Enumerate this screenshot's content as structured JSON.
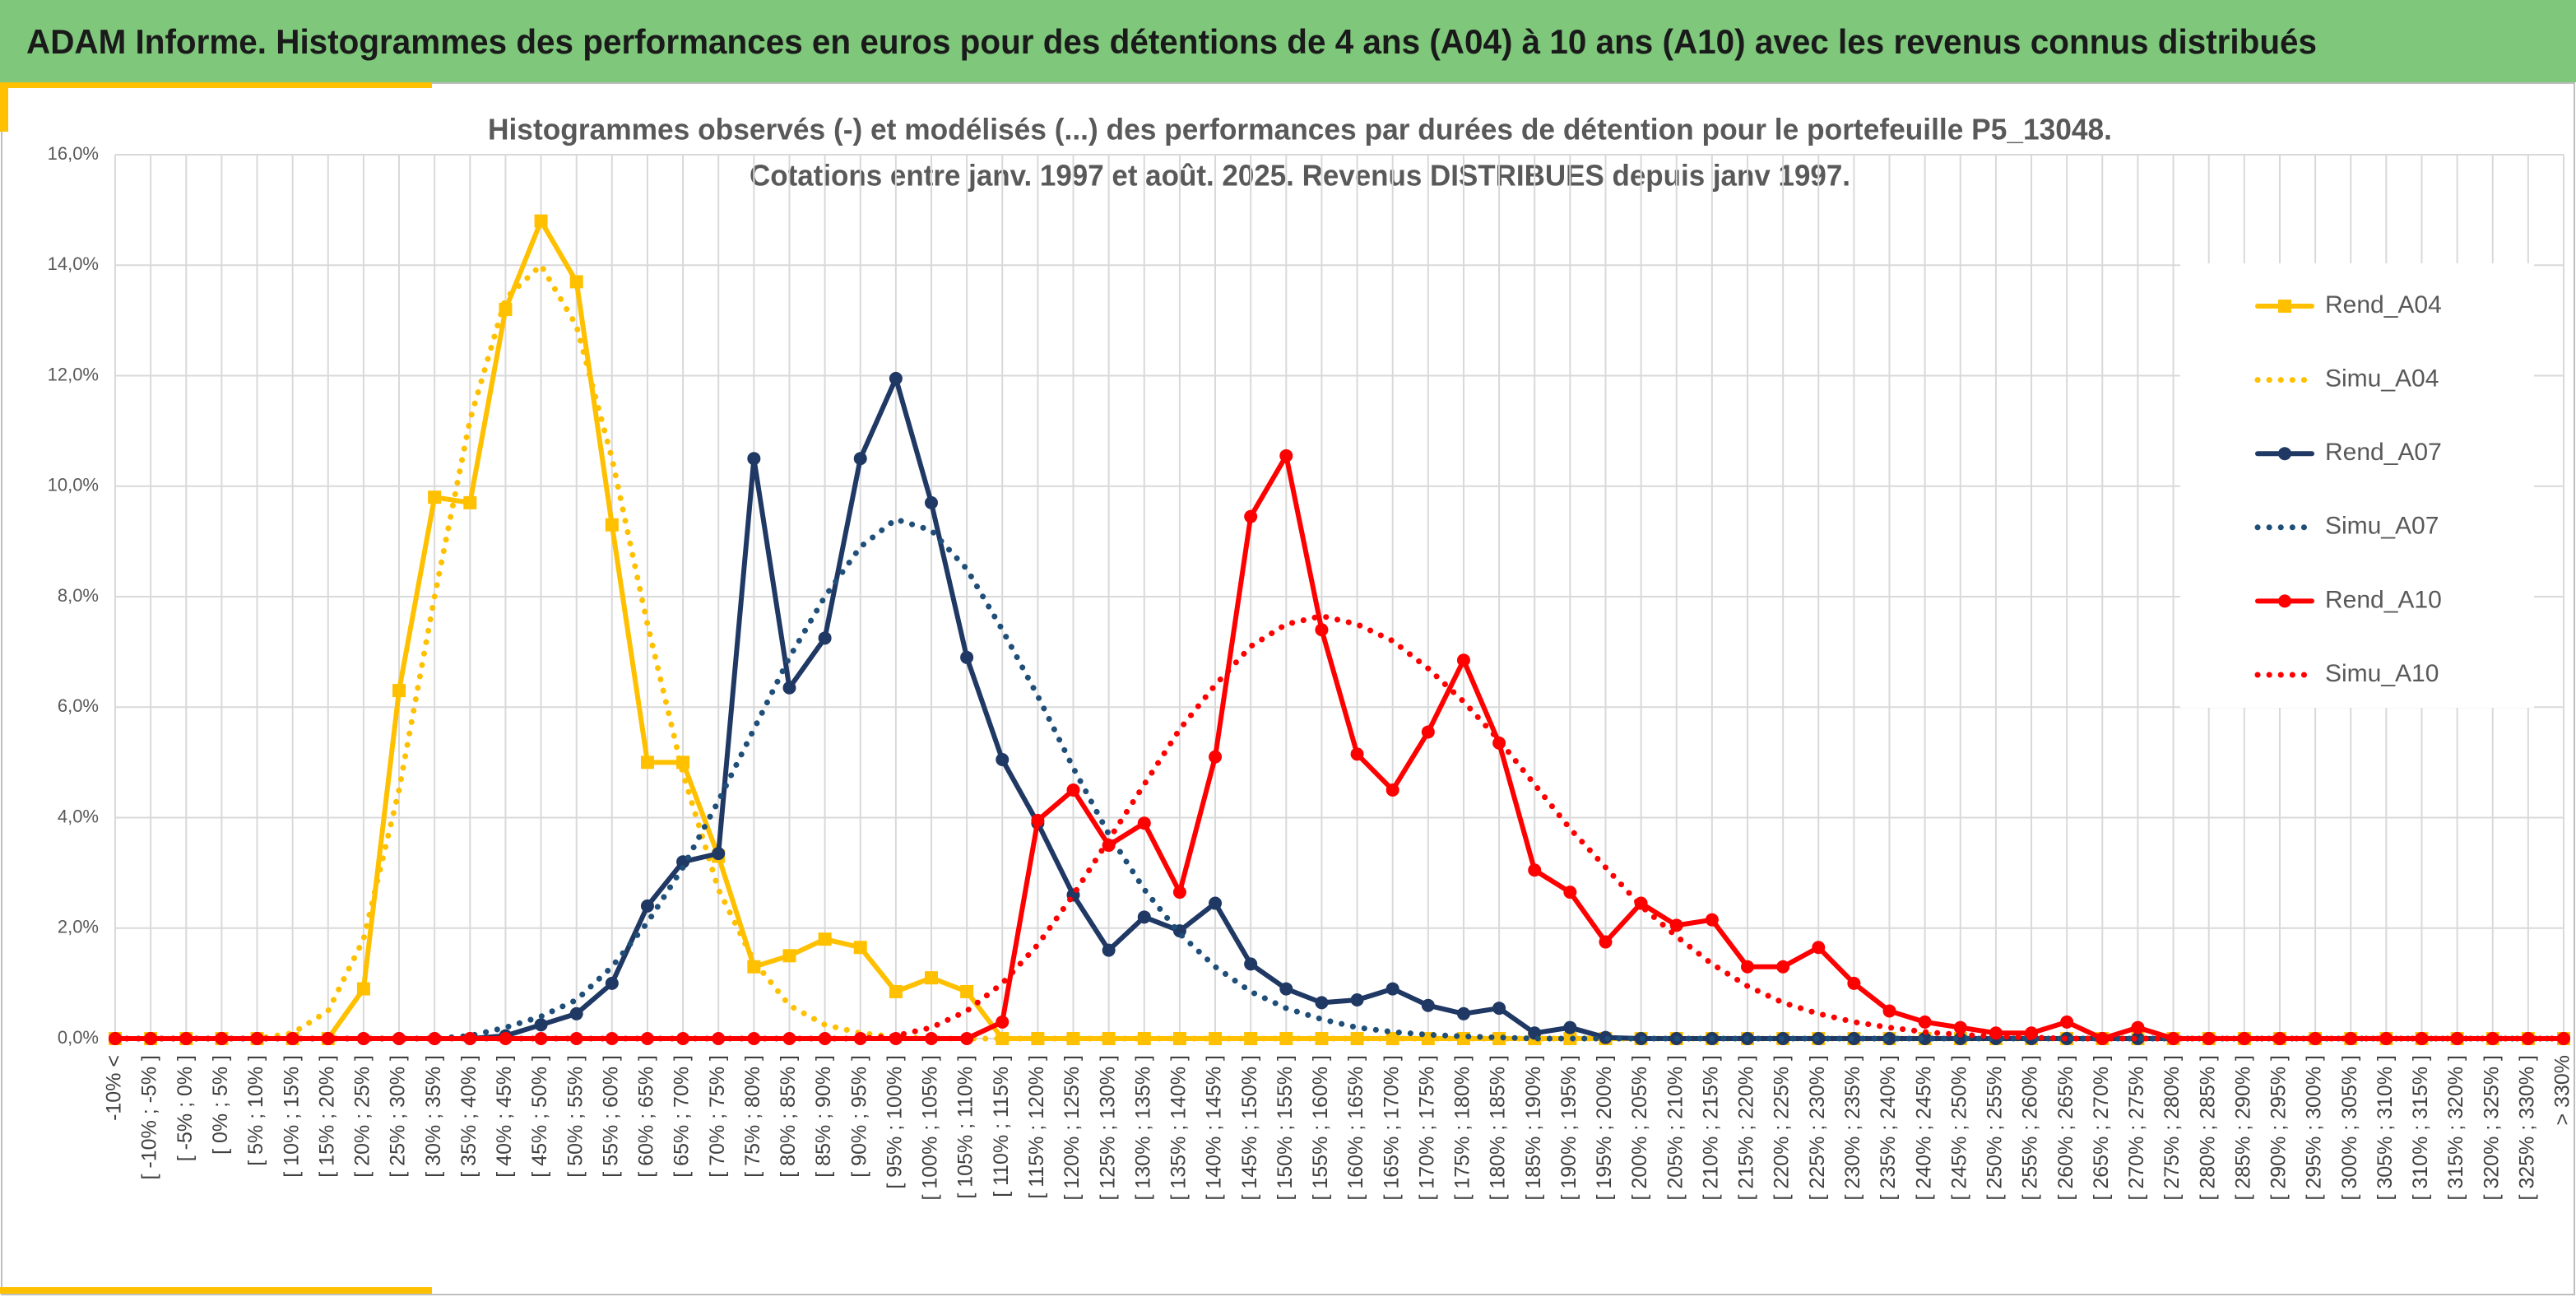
{
  "header": {
    "title": "ADAM Informe. Histogrammes des performances en euros pour des détentions de 4 ans (A04) à 10 ans (A10) avec les revenus connus distribués"
  },
  "chart_data": {
    "type": "line",
    "title": "Histogrammes observés (-) et modélisés (...) des performances par durées de détention pour le portefeuille P5_13048.",
    "subtitle": "Cotations entre janv. 1997 et août. 2025. Revenus DISTRIBUES depuis janv 1997.",
    "categories": [
      "-10% <",
      "[ -10% ; -5% ]",
      "[ -5% ; 0% ]",
      "[ 0% ; 5% ]",
      "[ 5% ; 10% ]",
      "[ 10% ; 15% ]",
      "[ 15% ; 20% ]",
      "[ 20% ; 25% ]",
      "[ 25% ; 30% ]",
      "[ 30% ; 35% ]",
      "[ 35% ; 40% ]",
      "[ 40% ; 45% ]",
      "[ 45% ; 50% ]",
      "[ 50% ; 55% ]",
      "[ 55% ; 60% ]",
      "[ 60% ; 65% ]",
      "[ 65% ; 70% ]",
      "[ 70% ; 75% ]",
      "[ 75% ; 80% ]",
      "[ 80% ; 85% ]",
      "[ 85% ; 90% ]",
      "[ 90% ; 95% ]",
      "[ 95% ; 100% ]",
      "[ 100% ; 105% ]",
      "[ 105% ; 110% ]",
      "[ 110% ; 115% ]",
      "[ 115% ; 120% ]",
      "[ 120% ; 125% ]",
      "[ 125% ; 130% ]",
      "[ 130% ; 135% ]",
      "[ 135% ; 140% ]",
      "[ 140% ; 145% ]",
      "[ 145% ; 150% ]",
      "[ 150% ; 155% ]",
      "[ 155% ; 160% ]",
      "[ 160% ; 165% ]",
      "[ 165% ; 170% ]",
      "[ 170% ; 175% ]",
      "[ 175% ; 180% ]",
      "[ 180% ; 185% ]",
      "[ 185% ; 190% ]",
      "[ 190% ; 195% ]",
      "[ 195% ; 200% ]",
      "[ 200% ; 205% ]",
      "[ 205% ; 210% ]",
      "[ 210% ; 215% ]",
      "[ 215% ; 220% ]",
      "[ 220% ; 225% ]",
      "[ 225% ; 230% ]",
      "[ 230% ; 235% ]",
      "[ 235% ; 240% ]",
      "[ 240% ; 245% ]",
      "[ 245% ; 250% ]",
      "[ 250% ; 255% ]",
      "[ 255% ; 260% ]",
      "[ 260% ; 265% ]",
      "[ 265% ; 270% ]",
      "[ 270% ; 275% ]",
      "[ 275% ; 280% ]",
      "[ 280% ; 285% ]",
      "[ 285% ; 290% ]",
      "[ 290% ; 295% ]",
      "[ 295% ; 300% ]",
      "[ 300% ; 305% ]",
      "[ 305% ; 310% ]",
      "[ 310% ; 315% ]",
      "[ 315% ; 320% ]",
      "[ 320% ; 325% ]",
      "[ 325% ; 330% ]",
      "> 330%"
    ],
    "series": [
      {
        "name": "Rend_A04",
        "color": "#ffc000",
        "marker": "square",
        "dotted": false,
        "values": [
          0,
          0,
          0,
          0,
          0,
          0,
          0,
          0.9,
          6.3,
          9.8,
          9.7,
          13.2,
          14.8,
          13.7,
          9.3,
          5.0,
          5.0,
          3.3,
          1.3,
          1.5,
          1.8,
          1.65,
          0.85,
          1.1,
          0.85,
          0,
          0,
          0,
          0,
          0,
          0,
          0,
          0,
          0,
          0,
          0,
          0,
          0,
          0,
          0,
          0,
          0,
          0,
          0,
          0,
          0,
          0,
          0,
          0,
          0,
          0,
          0,
          0,
          0,
          0,
          0,
          0,
          0,
          0,
          0,
          0,
          0,
          0,
          0,
          0,
          0,
          0,
          0,
          0,
          0
        ]
      },
      {
        "name": "Simu_A04",
        "color": "#ffc000",
        "marker": "none",
        "dotted": true,
        "values": [
          0,
          0,
          0,
          0,
          0,
          0.1,
          0.5,
          1.8,
          4.5,
          8.0,
          11.2,
          13.4,
          14.0,
          12.9,
          10.5,
          7.5,
          4.8,
          2.7,
          1.4,
          0.6,
          0.25,
          0.1,
          0.03,
          0,
          0,
          0,
          0,
          0,
          0,
          0,
          0,
          0,
          0,
          0,
          0,
          0,
          0,
          0,
          0,
          0,
          0,
          0,
          0,
          0,
          0,
          0,
          0,
          0,
          0,
          0,
          0,
          0,
          0,
          0,
          0,
          0,
          0,
          0,
          0,
          0,
          0,
          0,
          0,
          0,
          0,
          0,
          0,
          0,
          0,
          0
        ]
      },
      {
        "name": "Rend_A07",
        "color": "#1f3864",
        "marker": "circle",
        "dotted": false,
        "values": [
          0,
          0,
          0,
          0,
          0,
          0,
          0,
          0,
          0,
          0,
          0,
          0.05,
          0.25,
          0.45,
          1.0,
          2.4,
          3.2,
          3.35,
          10.5,
          6.35,
          7.25,
          10.5,
          11.95,
          9.7,
          6.9,
          5.05,
          3.9,
          2.6,
          1.6,
          2.2,
          1.95,
          2.45,
          1.35,
          0.9,
          0.65,
          0.7,
          0.9,
          0.6,
          0.45,
          0.55,
          0.1,
          0.2,
          0.02,
          0,
          0,
          0,
          0,
          0,
          0,
          0,
          0,
          0,
          0,
          0,
          0,
          0,
          0,
          0,
          0,
          0,
          0,
          0,
          0,
          0,
          0,
          0,
          0,
          0,
          0,
          0
        ]
      },
      {
        "name": "Simu_A07",
        "color": "#1f4e79",
        "marker": "none",
        "dotted": true,
        "values": [
          0,
          0,
          0,
          0,
          0,
          0,
          0,
          0,
          0,
          0,
          0.05,
          0.2,
          0.4,
          0.7,
          1.3,
          2.1,
          3.1,
          4.3,
          5.6,
          6.9,
          8.0,
          8.9,
          9.4,
          9.2,
          8.5,
          7.4,
          6.2,
          4.9,
          3.7,
          2.7,
          1.9,
          1.3,
          0.85,
          0.55,
          0.35,
          0.2,
          0.12,
          0.07,
          0.04,
          0.02,
          0,
          0,
          0,
          0,
          0,
          0,
          0,
          0,
          0,
          0,
          0,
          0,
          0,
          0,
          0,
          0,
          0,
          0,
          0,
          0,
          0,
          0,
          0,
          0,
          0,
          0,
          0,
          0,
          0,
          0
        ]
      },
      {
        "name": "Rend_A10",
        "color": "#ff0000",
        "marker": "circle",
        "dotted": false,
        "values": [
          0,
          0,
          0,
          0,
          0,
          0,
          0,
          0,
          0,
          0,
          0,
          0,
          0,
          0,
          0,
          0,
          0,
          0,
          0,
          0,
          0,
          0,
          0,
          0,
          0,
          0.3,
          3.95,
          4.5,
          3.5,
          3.9,
          2.65,
          5.1,
          9.45,
          10.55,
          7.4,
          5.15,
          4.5,
          5.55,
          6.85,
          5.35,
          3.05,
          2.65,
          1.75,
          2.45,
          2.05,
          2.15,
          1.3,
          1.3,
          1.65,
          1.0,
          0.5,
          0.3,
          0.2,
          0.1,
          0.1,
          0.3,
          0,
          0.2,
          0,
          0,
          0,
          0,
          0,
          0,
          0,
          0,
          0,
          0,
          0,
          0
        ]
      },
      {
        "name": "Simu_A10",
        "color": "#ff0000",
        "marker": "none",
        "dotted": true,
        "values": [
          0,
          0,
          0,
          0,
          0,
          0,
          0,
          0,
          0,
          0,
          0,
          0,
          0,
          0,
          0,
          0,
          0,
          0,
          0,
          0,
          0,
          0,
          0.05,
          0.2,
          0.5,
          1.0,
          1.7,
          2.6,
          3.6,
          4.6,
          5.6,
          6.4,
          7.1,
          7.5,
          7.65,
          7.5,
          7.2,
          6.7,
          6.1,
          5.4,
          4.6,
          3.8,
          3.1,
          2.4,
          1.85,
          1.35,
          0.95,
          0.65,
          0.45,
          0.3,
          0.2,
          0.12,
          0.07,
          0.04,
          0.02,
          0,
          0,
          0,
          0,
          0,
          0,
          0,
          0,
          0,
          0,
          0,
          0,
          0,
          0,
          0
        ]
      }
    ],
    "ylim": [
      0,
      16
    ],
    "yticks": [
      {
        "value": 0,
        "label": "0,0%"
      },
      {
        "value": 2,
        "label": "2,0%"
      },
      {
        "value": 4,
        "label": "4,0%"
      },
      {
        "value": 6,
        "label": "6,0%"
      },
      {
        "value": 8,
        "label": "8,0%"
      },
      {
        "value": 10,
        "label": "10,0%"
      },
      {
        "value": 12,
        "label": "12,0%"
      },
      {
        "value": 14,
        "label": "14,0%"
      },
      {
        "value": 16,
        "label": "16,0%"
      }
    ],
    "grid": true,
    "legend": "right"
  }
}
